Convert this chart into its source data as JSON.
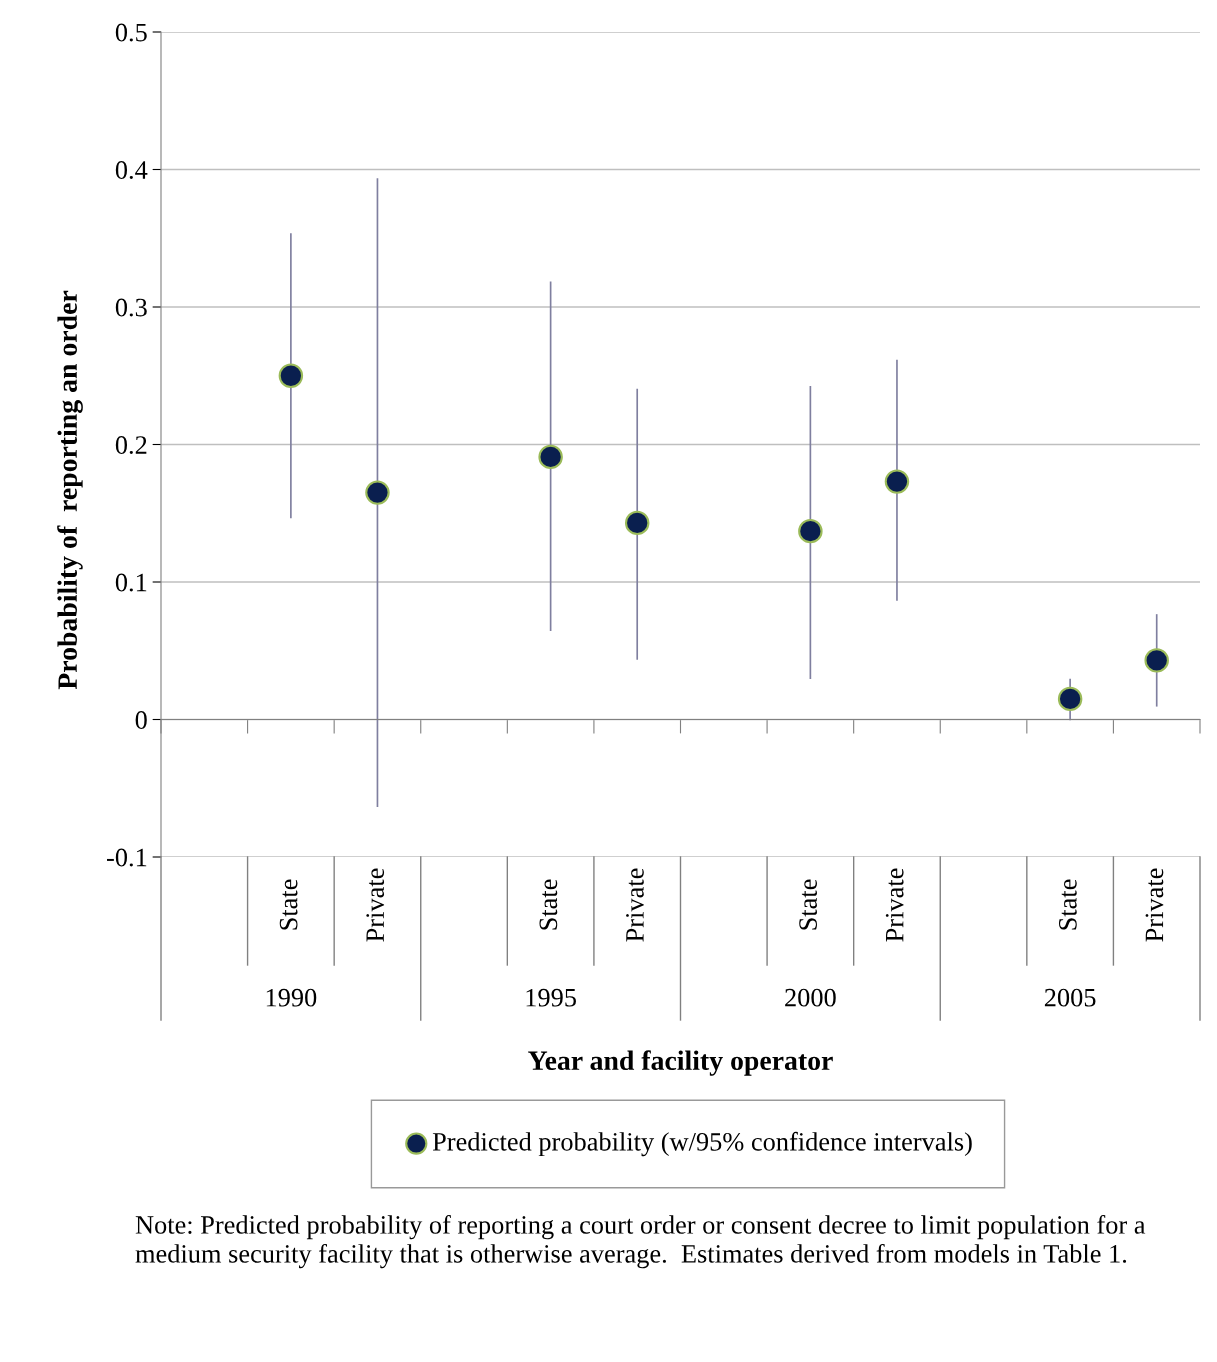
{
  "chart_data": {
    "type": "scatter",
    "xlabel": "Year and facility operator",
    "ylabel": "Probability of  reporting an order",
    "categories": [
      null,
      "State",
      "Private",
      null,
      "State",
      "Private",
      null,
      "State",
      "Private",
      null,
      "State",
      "Private"
    ],
    "series": [
      {
        "name": "Predicted probability (w/95% confidence intervals)",
        "color": "#0a1f4f",
        "values": [
          null,
          0.25,
          0.165,
          null,
          0.191,
          0.143,
          null,
          0.137,
          0.173,
          null,
          0.015,
          0.043
        ],
        "errors": [
          null,
          [
            0.147,
            0.353
          ],
          [
            -0.063,
            0.393
          ],
          null,
          [
            0.065,
            0.318
          ],
          [
            0.044,
            0.24
          ],
          null,
          [
            0.03,
            0.242
          ],
          [
            0.087,
            0.261
          ],
          null,
          [
            0.0,
            0.029
          ],
          [
            0.01,
            0.076
          ]
        ]
      }
    ],
    "ylim": [
      -0.1,
      0.5
    ],
    "yticks": [
      -0.1,
      0,
      0.1,
      0.2,
      0.3,
      0.4,
      0.5
    ],
    "grid": "y",
    "legend": "bottom",
    "marker": "circle",
    "annotations": [
      "1990",
      "1995",
      "2000",
      "2005",
      "Note: Predicted probability of reporting a court order or consent decree to limit population for a medium security facility that is otherwise average.  Estimates derived from models in Table 1."
    ]
  }
}
